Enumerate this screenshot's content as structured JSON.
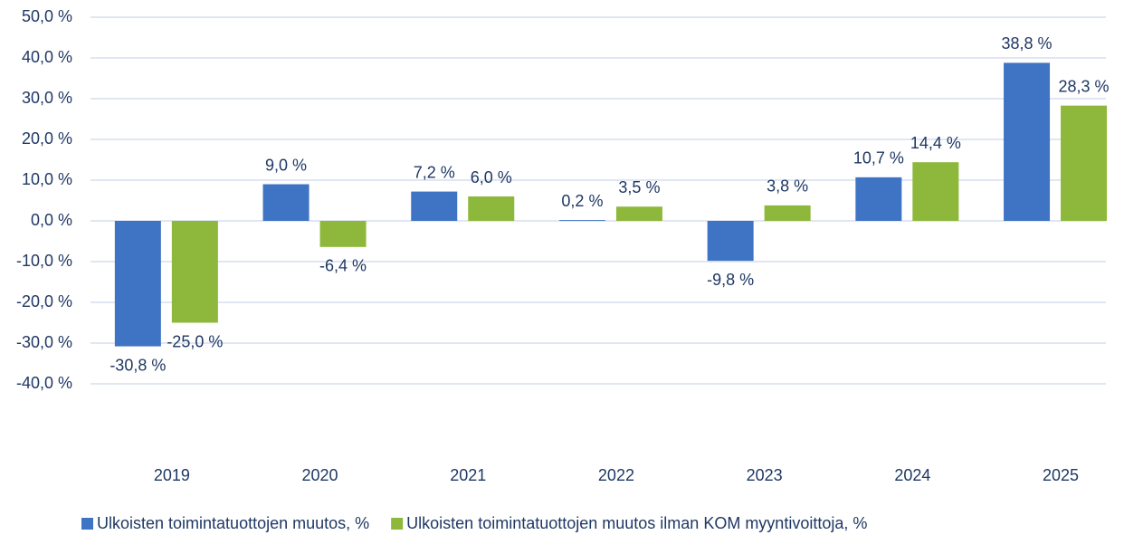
{
  "chart_data": {
    "type": "bar",
    "categories": [
      "2019",
      "2020",
      "2021",
      "2022",
      "2023",
      "2024",
      "2025"
    ],
    "series": [
      {
        "name": "Ulkoisten toimintatuottojen muutos, %",
        "color": "#3f74c4",
        "values": [
          -30.8,
          9.0,
          7.2,
          0.2,
          -9.8,
          10.7,
          38.8
        ],
        "value_labels": [
          "-30,8 %",
          "9,0 %",
          "7,2 %",
          "0,2 %",
          "-9,8 %",
          "10,7 %",
          "38,8 %"
        ]
      },
      {
        "name": "Ulkoisten toimintatuottojen muutos ilman KOM myyntivoittoja, %",
        "color": "#8db83b",
        "values": [
          -25.0,
          -6.4,
          6.0,
          3.5,
          3.8,
          14.4,
          28.3
        ],
        "value_labels": [
          "-25,0 %",
          "-6,4 %",
          "6,0 %",
          "3,5 %",
          "3,8 %",
          "14,4 %",
          "28,3 %"
        ]
      }
    ],
    "ylim": [
      -40,
      50
    ],
    "yticks": [
      {
        "value": 50,
        "label": "50,0 %"
      },
      {
        "value": 40,
        "label": "40,0 %"
      },
      {
        "value": 30,
        "label": "30,0 %"
      },
      {
        "value": 20,
        "label": "20,0 %"
      },
      {
        "value": 10,
        "label": "10,0 %"
      },
      {
        "value": 0,
        "label": "0,0 %"
      },
      {
        "value": -10,
        "label": "-10,0 %"
      },
      {
        "value": -20,
        "label": "-20,0 %"
      },
      {
        "value": -30,
        "label": "-30,0 %"
      },
      {
        "value": -40,
        "label": "-40,0 %"
      }
    ],
    "grid": true,
    "legend": "bottom"
  }
}
